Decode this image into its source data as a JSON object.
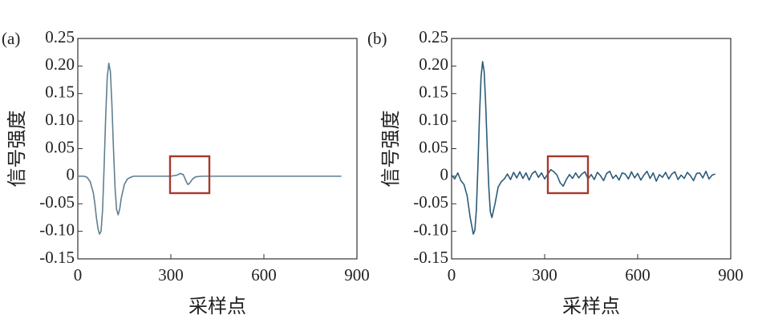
{
  "chart_data": [
    {
      "type": "line",
      "panel_label": "(a)",
      "xlabel": "采样点",
      "ylabel": "信号强度",
      "color": "#5f7f91",
      "xlim": [
        0,
        900
      ],
      "xticks": [
        0,
        300,
        600,
        900
      ],
      "ylim": [
        -0.15,
        0.25
      ],
      "yticks": [
        -0.15,
        {
          "value": -0.1,
          "label": "-0.10"
        },
        -0.05,
        0,
        0.05,
        {
          "value": 0.1,
          "label": "0.10"
        },
        0.15,
        {
          "value": 0.2,
          "label": "0.20"
        },
        0.25
      ],
      "x": [
        0,
        10,
        20,
        30,
        40,
        50,
        55,
        60,
        65,
        70,
        75,
        80,
        85,
        90,
        95,
        100,
        105,
        110,
        115,
        120,
        125,
        130,
        135,
        140,
        150,
        160,
        170,
        180,
        200,
        250,
        300,
        320,
        330,
        340,
        350,
        355,
        360,
        370,
        380,
        400,
        450,
        500,
        600,
        700,
        800,
        850
      ],
      "values": [
        0,
        0,
        0,
        -0.002,
        -0.01,
        -0.03,
        -0.05,
        -0.075,
        -0.095,
        -0.105,
        -0.1,
        -0.06,
        0.02,
        0.11,
        0.18,
        0.205,
        0.19,
        0.13,
        0.05,
        -0.02,
        -0.06,
        -0.07,
        -0.06,
        -0.04,
        -0.015,
        -0.005,
        -0.002,
        0,
        0,
        0,
        0,
        0.002,
        0.005,
        0.003,
        -0.01,
        -0.015,
        -0.013,
        -0.005,
        -0.001,
        0,
        0,
        0,
        0,
        0,
        0,
        0
      ]
    },
    {
      "type": "line",
      "panel_label": "(b)",
      "xlabel": "采样点",
      "ylabel": "信号强度",
      "color": "#2b5a78",
      "xlim": [
        0,
        900
      ],
      "xticks": [
        0,
        300,
        600,
        900
      ],
      "ylim": [
        -0.15,
        0.25
      ],
      "yticks": [
        -0.15,
        {
          "value": -0.1,
          "label": "-0.10"
        },
        -0.05,
        0,
        0.05,
        {
          "value": 0.1,
          "label": "0.10"
        },
        0.15,
        {
          "value": 0.2,
          "label": "0.20"
        },
        0.25
      ],
      "x": [
        0,
        10,
        20,
        30,
        40,
        50,
        60,
        65,
        70,
        75,
        80,
        85,
        90,
        95,
        100,
        105,
        110,
        115,
        120,
        125,
        130,
        140,
        150,
        160,
        170,
        180,
        190,
        200,
        210,
        220,
        230,
        240,
        250,
        260,
        270,
        280,
        290,
        300,
        310,
        320,
        330,
        340,
        350,
        360,
        370,
        380,
        390,
        400,
        410,
        420,
        430,
        440,
        450,
        460,
        470,
        480,
        490,
        500,
        510,
        520,
        530,
        540,
        550,
        560,
        570,
        580,
        590,
        600,
        610,
        620,
        630,
        640,
        650,
        660,
        670,
        680,
        690,
        700,
        710,
        720,
        730,
        740,
        750,
        760,
        770,
        780,
        790,
        800,
        810,
        820,
        830,
        840,
        850
      ],
      "values": [
        0.002,
        -0.005,
        0.006,
        -0.008,
        -0.015,
        -0.035,
        -0.075,
        -0.09,
        -0.105,
        -0.098,
        -0.06,
        0.02,
        0.11,
        0.18,
        0.208,
        0.19,
        0.13,
        0.05,
        -0.02,
        -0.065,
        -0.075,
        -0.05,
        -0.02,
        -0.01,
        -0.005,
        0.004,
        -0.006,
        0.007,
        -0.003,
        0.008,
        -0.004,
        0.006,
        -0.007,
        0.005,
        0.009,
        -0.002,
        0.006,
        -0.005,
        0.004,
        0.012,
        0.008,
        0.002,
        -0.012,
        -0.018,
        -0.006,
        0.003,
        -0.004,
        0.006,
        -0.003,
        0.004,
        0.008,
        -0.005,
        0.003,
        -0.006,
        0.007,
        0.001,
        -0.008,
        0.005,
        0.009,
        -0.004,
        0.002,
        -0.007,
        0.006,
        0.004,
        -0.005,
        0.008,
        -0.003,
        0.005,
        -0.007,
        0.002,
        0.009,
        -0.004,
        0.006,
        -0.009,
        0.003,
        -0.002,
        0.007,
        -0.005,
        0.004,
        0.008,
        -0.006,
        0.002,
        -0.004,
        0.007,
        0.001,
        -0.008,
        0.005,
        0.006,
        -0.003,
        0.009,
        -0.005,
        0.002,
        0.004
      ]
    }
  ]
}
